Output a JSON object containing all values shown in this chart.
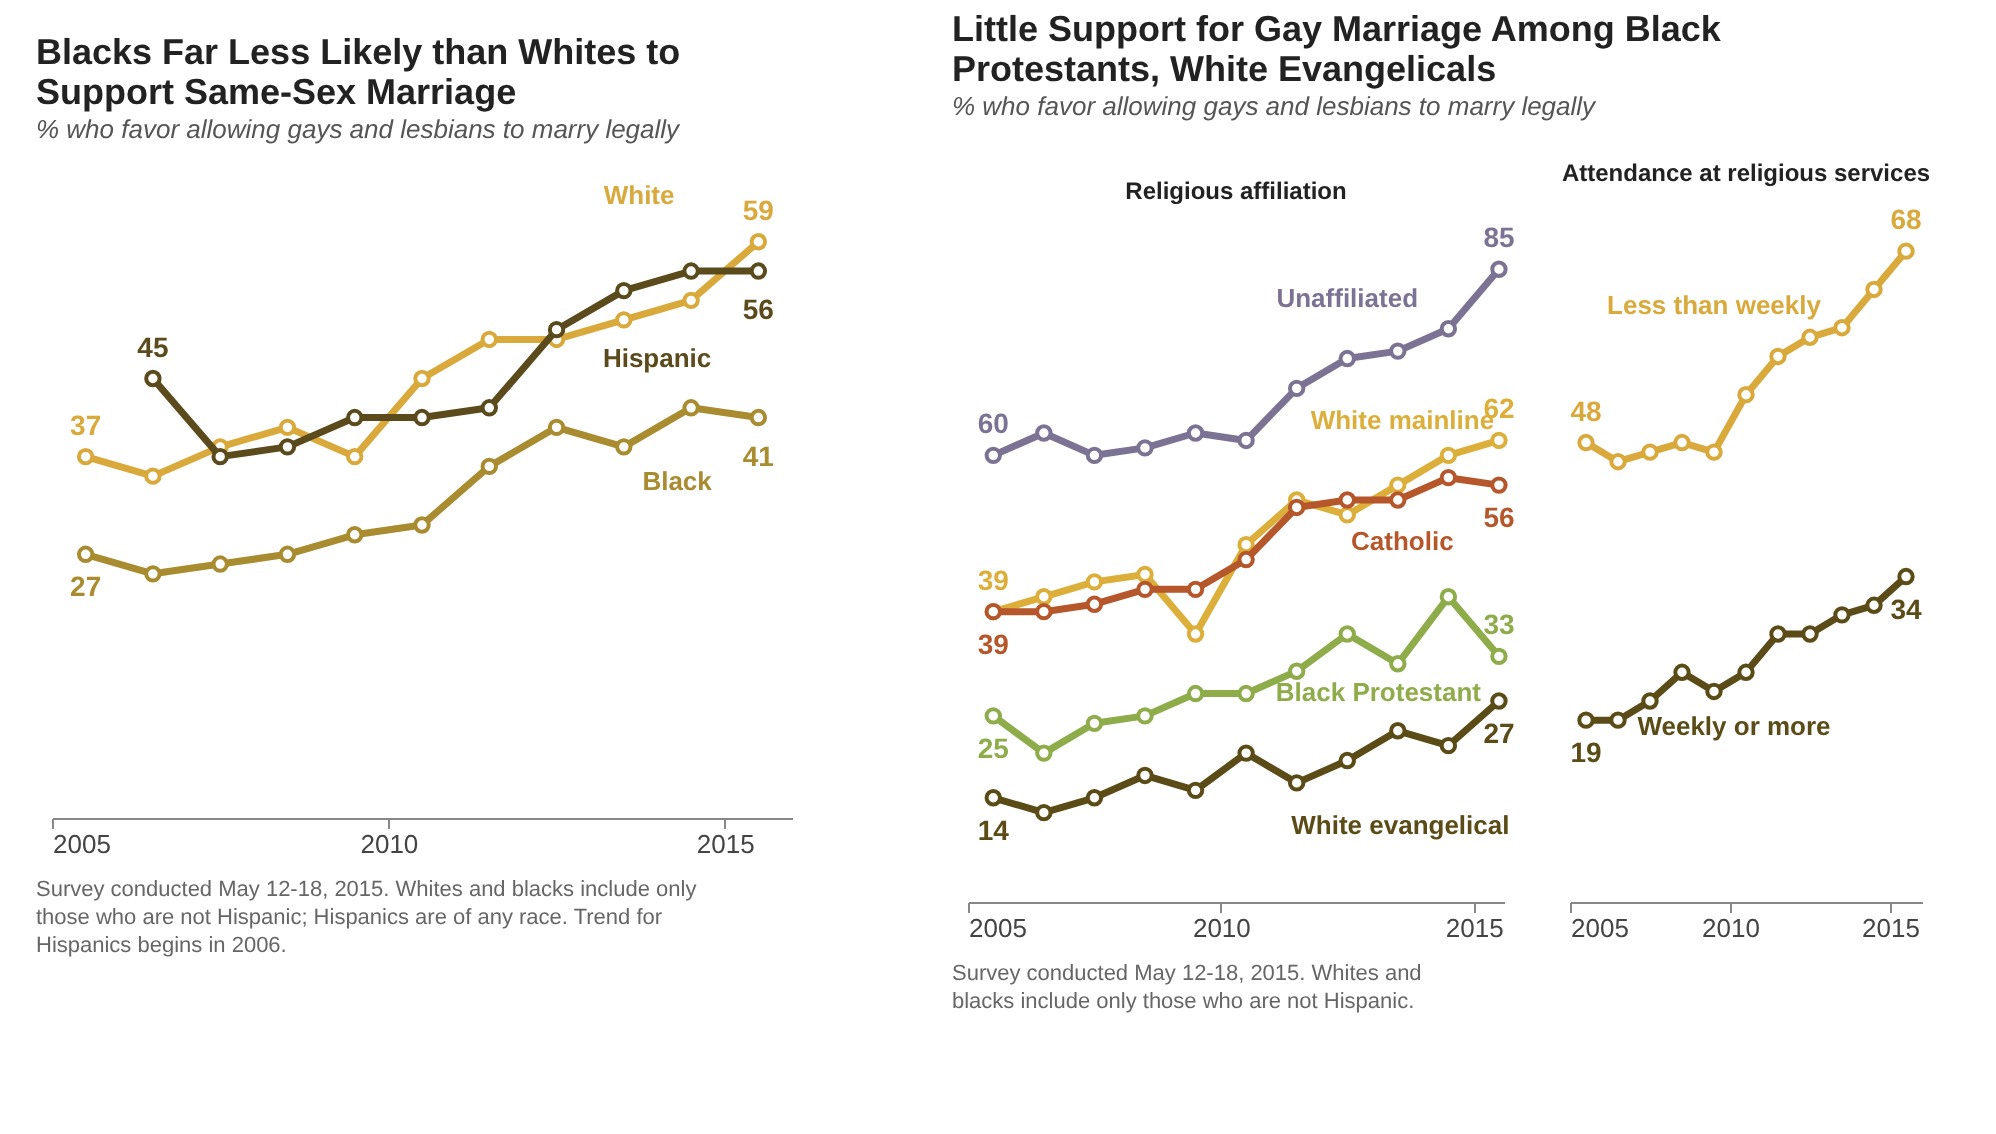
{
  "chart_data": [
    {
      "type": "line",
      "title": "Blacks Far Less Likely than Whites to Support Same-Sex Marriage",
      "subtitle": "% who favor allowing gays and lesbians to marry legally",
      "x": [
        2005.5,
        2006.5,
        2007.5,
        2008.5,
        2009.5,
        2010.5,
        2011.5,
        2012.5,
        2013.5,
        2014.5,
        2015.5
      ],
      "xlim": [
        2005,
        2016
      ],
      "xticks": [
        2005,
        2010,
        2015
      ],
      "tick_labels": "x",
      "grid": false,
      "marker": "circle",
      "line_style": "solid",
      "series": [
        {
          "name": "White",
          "color": "#d9a93c",
          "values": [
            37,
            35,
            38,
            40,
            37,
            45,
            49,
            49,
            51,
            53,
            59
          ],
          "value_labels": [
            "37",
            null,
            null,
            null,
            null,
            null,
            null,
            null,
            null,
            null,
            "59"
          ]
        },
        {
          "name": "Hispanic",
          "color": "#5b4b1c",
          "values": [
            null,
            45,
            37,
            38,
            41,
            41,
            42,
            50,
            54,
            56,
            56
          ],
          "value_labels": [
            null,
            "45",
            null,
            null,
            null,
            null,
            null,
            null,
            null,
            null,
            "56"
          ]
        },
        {
          "name": "Black",
          "color": "#a98b30",
          "values": [
            27,
            25,
            26,
            27,
            29,
            30,
            36,
            40,
            38,
            42,
            41
          ],
          "value_labels": [
            "27",
            null,
            null,
            null,
            null,
            null,
            null,
            null,
            null,
            null,
            "41"
          ]
        }
      ],
      "annotations": [
        "Survey conducted May 12-18, 2015. Whites and blacks include only those who are not Hispanic; Hispanics are of any race. Trend for Hispanics begins in 2006."
      ]
    },
    {
      "type": "line",
      "title": "Little Support for Gay Marriage Among Black Protestants, White Evangelicals",
      "subtitle": "% who favor allowing gays and lesbians to marry legally",
      "x": [
        2005.5,
        2006.5,
        2007.5,
        2008.5,
        2009.5,
        2010.5,
        2011.5,
        2012.5,
        2013.5,
        2014.5,
        2015.5
      ],
      "xlim": [
        2005,
        2015.6
      ],
      "xticks": [
        2005,
        2010,
        2015
      ],
      "tick_labels": "x",
      "grid": false,
      "marker": "circle",
      "line_style": "solid",
      "series": [
        {
          "name": "Unaffiliated",
          "color": "#7c7394",
          "values": [
            60,
            63,
            60,
            61,
            63,
            62,
            69,
            73,
            74,
            77,
            85
          ],
          "value_labels": [
            "60",
            null,
            null,
            null,
            null,
            null,
            null,
            null,
            null,
            null,
            "85"
          ]
        },
        {
          "name": "White mainline",
          "color": "#dcae3a",
          "values": [
            39,
            41,
            43,
            44,
            36,
            48,
            54,
            52,
            56,
            60,
            62
          ],
          "value_labels": [
            "39",
            null,
            null,
            null,
            null,
            null,
            null,
            null,
            null,
            null,
            "62"
          ]
        },
        {
          "name": "Catholic",
          "color": "#b5572b",
          "values": [
            39,
            39,
            40,
            42,
            42,
            46,
            53,
            54,
            54,
            57,
            56
          ],
          "value_labels": [
            "39",
            null,
            null,
            null,
            null,
            null,
            null,
            null,
            null,
            null,
            "56"
          ]
        },
        {
          "name": "Black Protestant",
          "color": "#8fac4b",
          "values": [
            25,
            20,
            24,
            25,
            28,
            28,
            31,
            36,
            32,
            41,
            33
          ],
          "value_labels": [
            "25",
            null,
            null,
            null,
            null,
            null,
            null,
            null,
            null,
            null,
            "33"
          ]
        },
        {
          "name": "White evangelical",
          "color": "#5b4b16",
          "values": [
            14,
            12,
            14,
            17,
            15,
            20,
            16,
            19,
            23,
            21,
            27
          ],
          "value_labels": [
            "14",
            null,
            null,
            null,
            null,
            null,
            null,
            null,
            null,
            null,
            "27"
          ]
        }
      ],
      "annotations": [
        "Religious affiliation",
        "Survey conducted May 12-18, 2015.  Whites and blacks include only those who are not Hispanic."
      ]
    },
    {
      "type": "line",
      "title": "Attendance at religious services",
      "x": [
        2005.5,
        2006.5,
        2007.5,
        2008.5,
        2009.5,
        2010.5,
        2011.5,
        2012.5,
        2013.5,
        2014.5,
        2015.5
      ],
      "xlim": [
        2005,
        2016
      ],
      "xticks": [
        2005,
        2010,
        2015
      ],
      "tick_labels": "x",
      "grid": false,
      "marker": "circle",
      "line_style": "solid",
      "series": [
        {
          "name": "Less than weekly",
          "color": "#d9a93c",
          "values": [
            48,
            46,
            47,
            48,
            47,
            53,
            57,
            59,
            60,
            64,
            68
          ],
          "value_labels": [
            "48",
            null,
            null,
            null,
            null,
            null,
            null,
            null,
            null,
            null,
            "68"
          ]
        },
        {
          "name": "Weekly or more",
          "color": "#5b4b16",
          "values": [
            19,
            19,
            21,
            24,
            22,
            24,
            28,
            28,
            30,
            31,
            34
          ],
          "value_labels": [
            "19",
            null,
            null,
            null,
            null,
            null,
            null,
            null,
            null,
            null,
            "34"
          ]
        }
      ]
    }
  ]
}
